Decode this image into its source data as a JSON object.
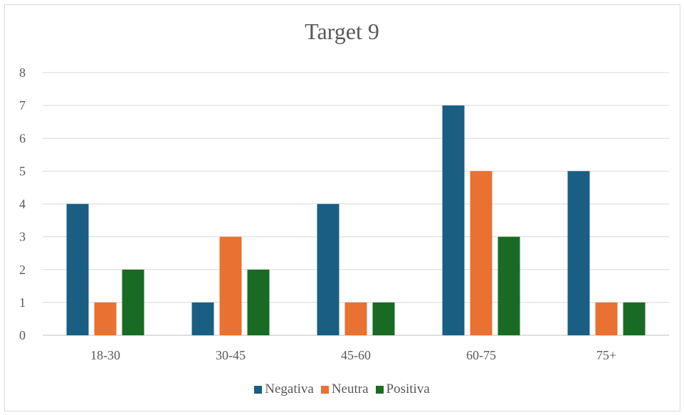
{
  "chart_data": {
    "type": "bar",
    "title": "Target 9",
    "categories": [
      "18-30",
      "30-45",
      "45-60",
      "60-75",
      "75+"
    ],
    "series": [
      {
        "name": "Negativa",
        "values": [
          4,
          1,
          4,
          7,
          5
        ],
        "color": "#1a5e83"
      },
      {
        "name": "Neutra",
        "values": [
          1,
          3,
          1,
          5,
          1
        ],
        "color": "#e97132"
      },
      {
        "name": "Positiva",
        "values": [
          2,
          2,
          1,
          3,
          1
        ],
        "color": "#196b24"
      }
    ],
    "ylim": [
      0,
      8
    ],
    "yticks": [
      0,
      1,
      2,
      3,
      4,
      5,
      6,
      7,
      8
    ],
    "grid": true,
    "legend_position": "bottom"
  }
}
